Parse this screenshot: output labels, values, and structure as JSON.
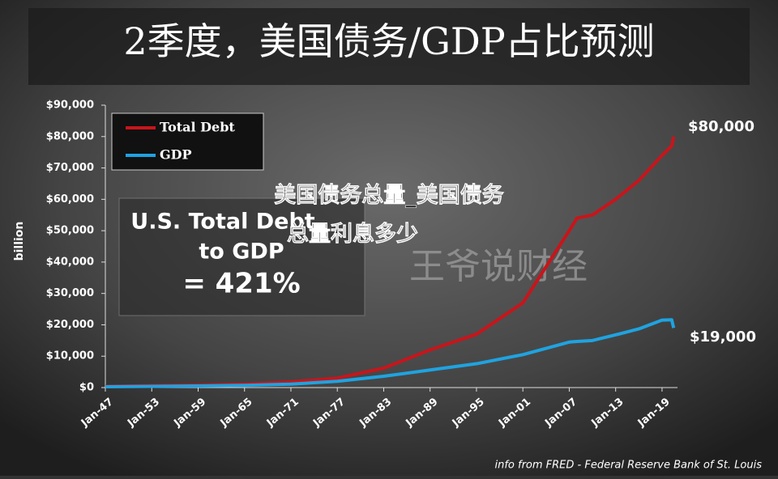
{
  "chart_data": {
    "type": "line",
    "title": "2季度，美国债务/GDP占比预测",
    "overlay_text": "美国债务总量_美国债务总量利息多少",
    "watermark": "王爷说财经",
    "y_label": "billion",
    "source": "info from FRED - Federal Reserve Bank of St. Louis",
    "annotation_box": [
      "U.S. Total Debt",
      "to GDP",
      "= 421%"
    ],
    "end_labels": [
      "$80,000",
      "$19,000"
    ],
    "x": [
      1947,
      1953,
      1959,
      1965,
      1971,
      1977,
      1983,
      1989,
      1995,
      2001,
      2007,
      2008,
      2010,
      2013,
      2016,
      2019,
      2020.25,
      2020.5
    ],
    "series": [
      {
        "name": "Total Debt",
        "color": "#c8151b",
        "values": [
          400,
          600,
          800,
          1100,
          1800,
          3000,
          6200,
          12000,
          17000,
          27000,
          50000,
          54000,
          55000,
          60000,
          66000,
          74000,
          77000,
          80000
        ]
      },
      {
        "name": "GDP",
        "color": "#1fa3e0",
        "values": [
          250,
          390,
          510,
          720,
          1100,
          2000,
          3600,
          5600,
          7600,
          10500,
          14500,
          14700,
          15000,
          16800,
          18700,
          21500,
          21600,
          19000
        ]
      }
    ],
    "xlim": [
      1947,
      2021
    ],
    "xticks": [
      {
        "value": 1947,
        "label": "Jan-47"
      },
      {
        "value": 1953,
        "label": "Jan-53"
      },
      {
        "value": 1959,
        "label": "Jan-59"
      },
      {
        "value": 1965,
        "label": "Jan-65"
      },
      {
        "value": 1971,
        "label": "Jan-71"
      },
      {
        "value": 1977,
        "label": "Jan-77"
      },
      {
        "value": 1983,
        "label": "Jan-83"
      },
      {
        "value": 1989,
        "label": "Jan-89"
      },
      {
        "value": 1995,
        "label": "Jan-95"
      },
      {
        "value": 2001,
        "label": "Jan-01"
      },
      {
        "value": 2007,
        "label": "Jan-07"
      },
      {
        "value": 2013,
        "label": "Jan-13"
      },
      {
        "value": 2019,
        "label": "Jan-19"
      }
    ],
    "ylim": [
      0,
      90000
    ],
    "yticks": [
      {
        "value": 0,
        "label": "$0"
      },
      {
        "value": 10000,
        "label": "$10,000"
      },
      {
        "value": 20000,
        "label": "$20,000"
      },
      {
        "value": 30000,
        "label": "$30,000"
      },
      {
        "value": 40000,
        "label": "$40,000"
      },
      {
        "value": 50000,
        "label": "$50,000"
      },
      {
        "value": 60000,
        "label": "$60,000"
      },
      {
        "value": 70000,
        "label": "$70,000"
      },
      {
        "value": 80000,
        "label": "$80,000"
      },
      {
        "value": 90000,
        "label": "$90,000"
      }
    ]
  }
}
